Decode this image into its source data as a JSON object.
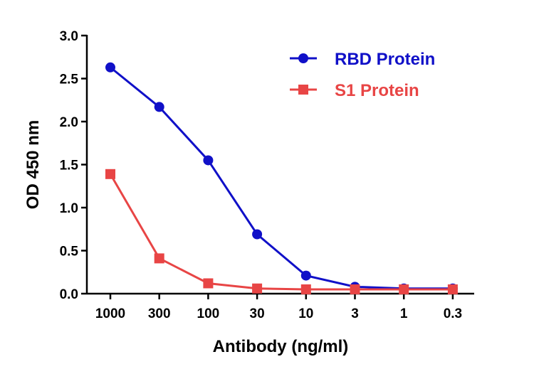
{
  "chart_data": {
    "type": "line",
    "title": "",
    "xlabel": "Antibody (ng/ml)",
    "ylabel": "OD 450 nm",
    "categories": [
      "1000",
      "300",
      "100",
      "30",
      "10",
      "3",
      "1",
      "0.3"
    ],
    "ylim": [
      0,
      3.0
    ],
    "yticks": [
      "0.0",
      "0.5",
      "1.0",
      "1.5",
      "2.0",
      "2.5",
      "3.0"
    ],
    "grid": false,
    "legend_position": "top-right",
    "series": [
      {
        "name": "RBD Protein",
        "color": "#1010c8",
        "marker": "circle",
        "values": [
          2.63,
          2.17,
          1.55,
          0.69,
          0.21,
          0.08,
          0.06,
          0.06
        ]
      },
      {
        "name": "S1 Protein",
        "color": "#e84545",
        "marker": "square",
        "values": [
          1.39,
          0.41,
          0.12,
          0.06,
          0.05,
          0.05,
          0.05,
          0.05
        ]
      }
    ]
  }
}
